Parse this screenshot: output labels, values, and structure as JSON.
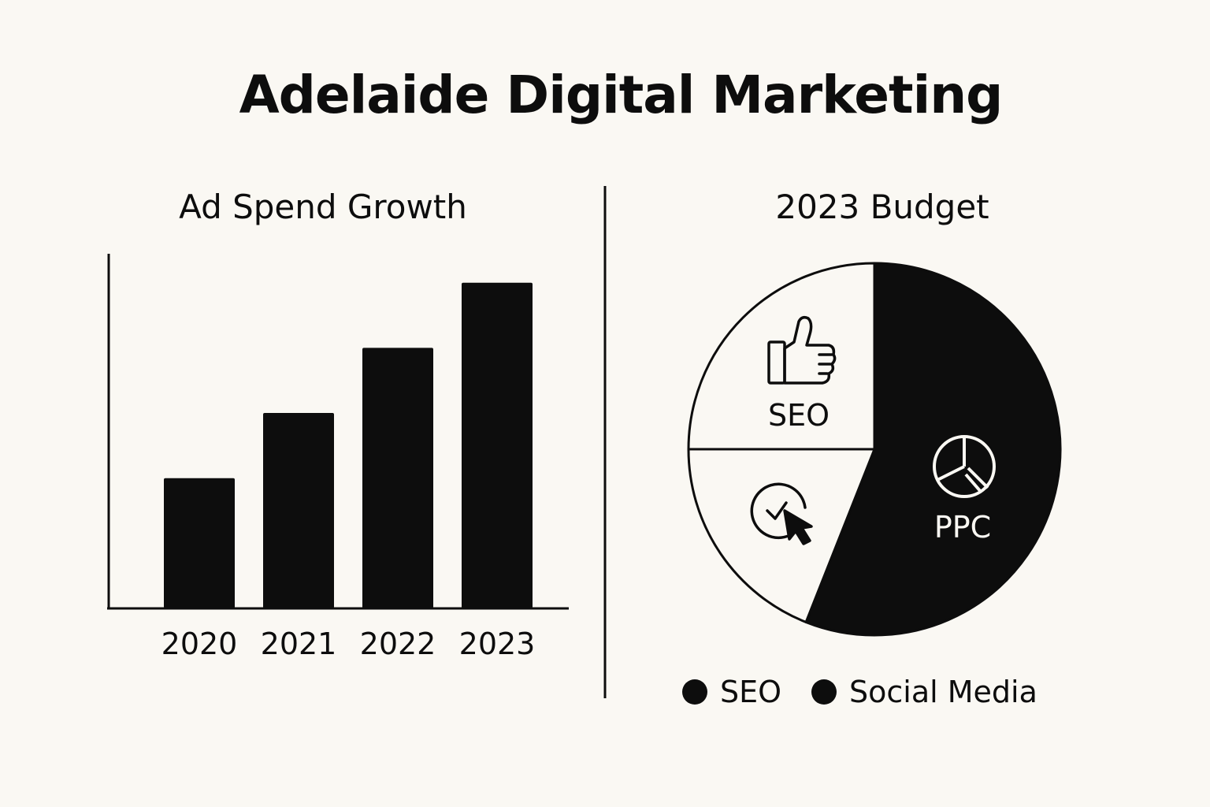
{
  "title": "Adelaide Digital Marketing",
  "colors": {
    "background": "#faf8f3",
    "ink": "#0d0d0d"
  },
  "chart_data": [
    {
      "type": "bar",
      "title": "Ad Spend Growth",
      "categories": [
        "2020",
        "2021",
        "2022",
        "2023"
      ],
      "values": [
        1.8,
        2.7,
        3.6,
        4.5
      ],
      "xlabel": "",
      "ylabel": "",
      "ylim": [
        0,
        4.9
      ],
      "grid": false,
      "axis_ticks_shown": false
    },
    {
      "type": "pie",
      "title": "2023 Budget",
      "slices": [
        {
          "label": "PPC",
          "value": 56,
          "color": "#0d0d0d",
          "icon": "pie-chart-icon"
        },
        {
          "label": "",
          "value": 19,
          "color": "#faf8f3",
          "icon": "click-cursor-icon"
        },
        {
          "label": "SEO",
          "value": 25,
          "color": "#faf8f3",
          "icon": "thumbs-up-icon"
        }
      ],
      "legend": {
        "placement": "bottom",
        "items": [
          {
            "label": "SEO",
            "color": "#0d0d0d"
          },
          {
            "label": "Social Media",
            "color": "#0d0d0d"
          }
        ]
      }
    }
  ]
}
